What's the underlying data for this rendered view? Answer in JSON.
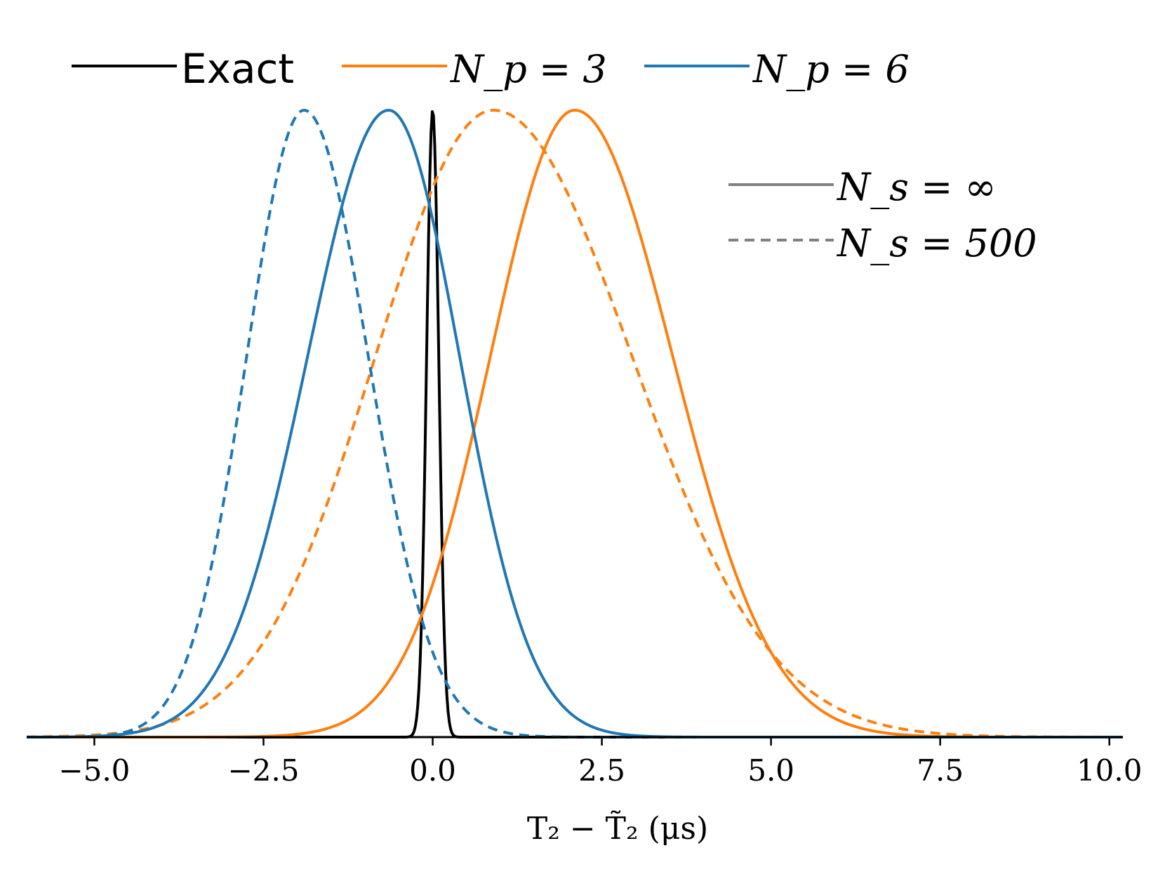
{
  "chart_data": {
    "type": "line",
    "title": "",
    "xlabel": "T₂ − T̃₂ (μs)",
    "ylabel": "",
    "xlim": [
      -6.0,
      10.2
    ],
    "ylim": [
      0,
      1.0
    ],
    "x_ticks": [
      -5.0,
      -2.5,
      0.0,
      2.5,
      5.0,
      7.5,
      10.0
    ],
    "x_tick_labels": [
      "−5.0",
      "−2.5",
      "0.0",
      "2.5",
      "5.0",
      "7.5",
      "10.0"
    ],
    "grid": false,
    "legend": {
      "series_placement": "top",
      "style_placement": "upper-right",
      "series_entries": [
        "Exact",
        "N_p = 3",
        "N_p = 6"
      ],
      "style_entries": [
        "N_s = ∞",
        "N_s = 500"
      ]
    },
    "colors": {
      "exact": "#000000",
      "np3": "#ff7f0e",
      "np6": "#1f77b4",
      "style_key": "#808080"
    },
    "series": [
      {
        "name": "Exact",
        "style": "solid",
        "color": "#000000",
        "center": 0.0,
        "sigma_left": 0.09,
        "sigma_right": 0.09
      },
      {
        "name": "N_p = 3, N_s = ∞",
        "style": "solid",
        "color": "#ff7f0e",
        "center": 2.1,
        "sigma_left": 1.25,
        "sigma_right": 1.45
      },
      {
        "name": "N_p = 3, N_s = 500",
        "style": "dashed",
        "color": "#ff7f0e",
        "center": 0.9,
        "sigma_left": 1.75,
        "sigma_right": 2.05
      },
      {
        "name": "N_p = 6, N_s = ∞",
        "style": "solid",
        "color": "#1f77b4",
        "center": -0.65,
        "sigma_left": 1.2,
        "sigma_right": 1.05
      },
      {
        "name": "N_p = 6, N_s = 500",
        "style": "dashed",
        "color": "#1f77b4",
        "center": -1.9,
        "sigma_left": 0.85,
        "sigma_right": 0.95
      }
    ]
  }
}
